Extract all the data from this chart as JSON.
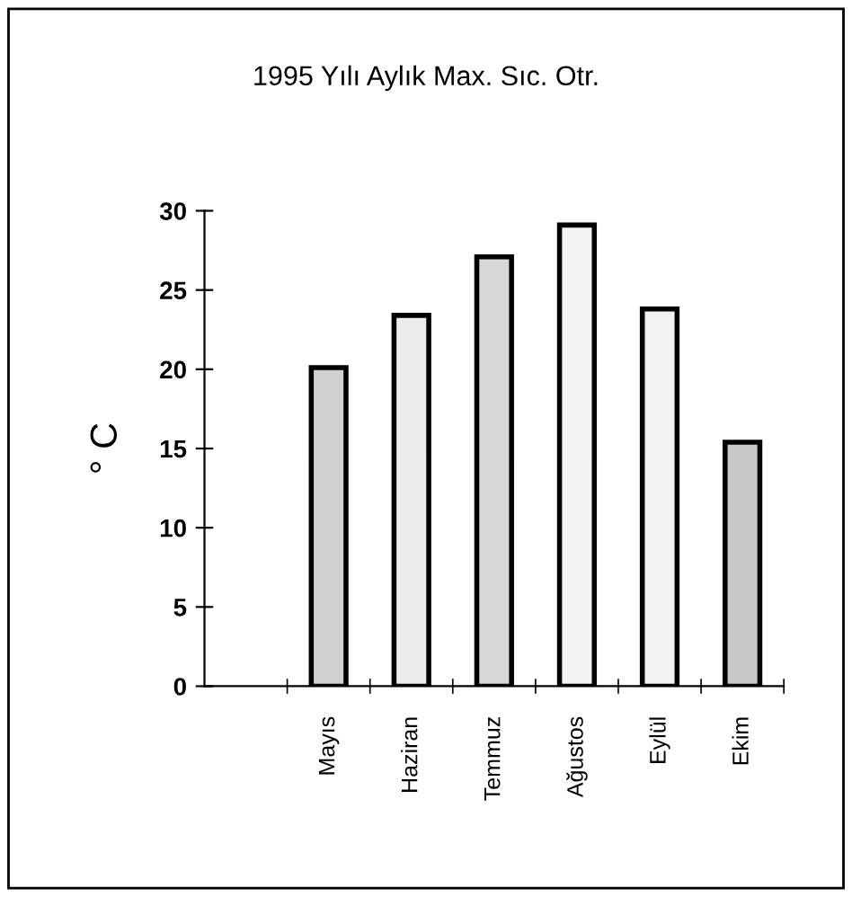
{
  "chart_data": {
    "type": "bar",
    "title": "1995 Yılı Aylık Max. Sıc. Otr.",
    "ylabel": "° C",
    "categories": [
      null,
      "Mayıs",
      "Haziran",
      "Temmuz",
      "Ağustos",
      "Eylül",
      "Ekim"
    ],
    "values": [
      null,
      20.1,
      23.4,
      27.1,
      29.1,
      23.8,
      15.4
    ],
    "colors": [
      "#d0d0d0",
      "#d0d0d0",
      "#ececec",
      "#d8d8d8",
      "#f2f2f2",
      "#f2f2f2",
      "#c8c8c8"
    ],
    "ylim": [
      0,
      30
    ],
    "yticks": [
      0,
      5,
      10,
      15,
      20,
      25,
      30
    ],
    "grid": false
  }
}
